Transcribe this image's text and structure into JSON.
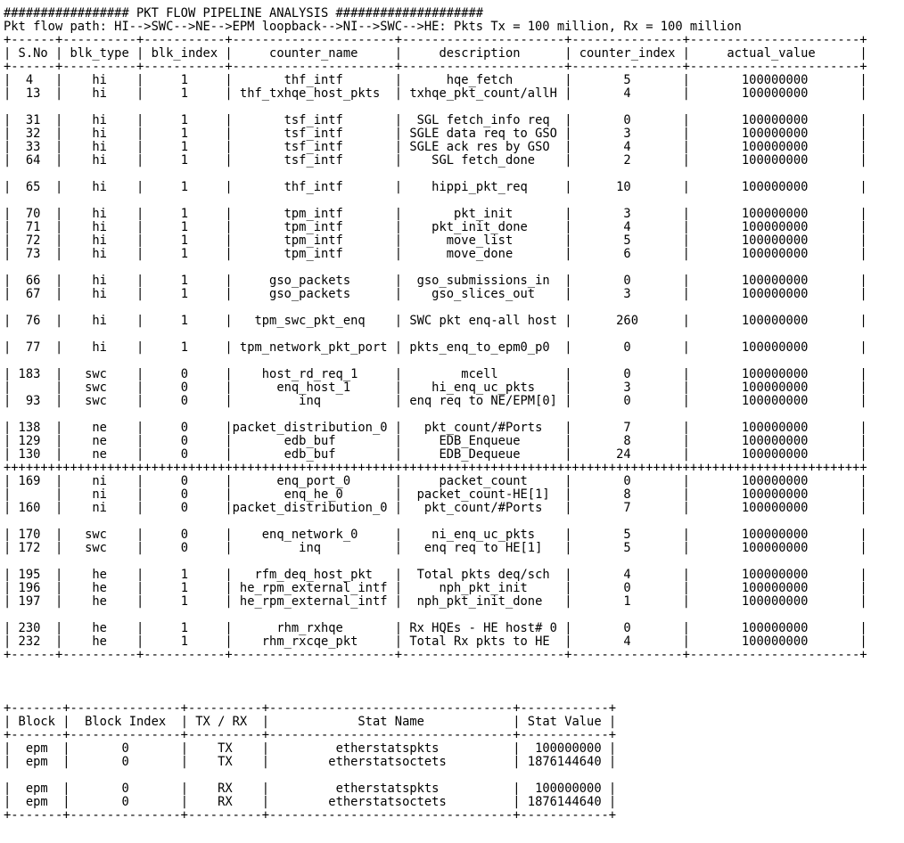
{
  "banner": "################# PKT FLOW PIPELINE ANALYSIS ####################",
  "flow_path": "Pkt flow path: HI-->SWC-->NE-->EPM loopback-->NI-->SWC-->HE: Pkts Tx = 100 million, Rx = 100 million",
  "table1": {
    "headers": [
      "S.No",
      "blk_type",
      "blk_index",
      "counter_name",
      "description",
      "counter_index",
      "actual_value"
    ],
    "groups": [
      [
        [
          "4",
          "hi",
          "1",
          "thf_intf",
          "hqe_fetch",
          "5",
          "100000000"
        ],
        [
          "13",
          "hi",
          "1",
          "thf_txhqe_host_pkts",
          "txhqe_pkt_count/allH",
          "4",
          "100000000"
        ]
      ],
      [
        [
          "31",
          "hi",
          "1",
          "tsf_intf",
          "SGL fetch_info req",
          "0",
          "100000000"
        ],
        [
          "32",
          "hi",
          "1",
          "tsf_intf",
          "SGLE data req to GSO",
          "3",
          "100000000"
        ],
        [
          "33",
          "hi",
          "1",
          "tsf_intf",
          "SGLE ack res by GSO",
          "4",
          "100000000"
        ],
        [
          "64",
          "hi",
          "1",
          "tsf_intf",
          "SGL fetch_done",
          "2",
          "100000000"
        ]
      ],
      [
        [
          "65",
          "hi",
          "1",
          "thf_intf",
          "hippi_pkt_req",
          "10",
          "100000000"
        ]
      ],
      [
        [
          "70",
          "hi",
          "1",
          "tpm_intf",
          "pkt_init",
          "3",
          "100000000"
        ],
        [
          "71",
          "hi",
          "1",
          "tpm_intf",
          "pkt_init_done",
          "4",
          "100000000"
        ],
        [
          "72",
          "hi",
          "1",
          "tpm_intf",
          "move_list",
          "5",
          "100000000"
        ],
        [
          "73",
          "hi",
          "1",
          "tpm_intf",
          "move_done",
          "6",
          "100000000"
        ]
      ],
      [
        [
          "66",
          "hi",
          "1",
          "gso_packets",
          "gso_submissions_in",
          "0",
          "100000000"
        ],
        [
          "67",
          "hi",
          "1",
          "gso_packets",
          "gso_slices_out",
          "3",
          "100000000"
        ]
      ],
      [
        [
          "76",
          "hi",
          "1",
          "tpm_swc_pkt_enq",
          "SWC pkt enq-all host",
          "260",
          "100000000"
        ]
      ],
      [
        [
          "77",
          "hi",
          "1",
          "tpm_network_pkt_port",
          "pkts_enq_to_epm0_p0",
          "0",
          "100000000"
        ]
      ],
      [
        [
          "183",
          "swc",
          "0",
          "host_rd_req_1",
          "mcell",
          "0",
          "100000000"
        ],
        [
          "",
          "swc",
          "0",
          "enq_host_1",
          "hi_enq_uc_pkts",
          "3",
          "100000000"
        ],
        [
          "93",
          "swc",
          "0",
          "inq",
          "enq req to NE/EPM[0]",
          "0",
          "100000000"
        ]
      ],
      [
        [
          "138",
          "ne",
          "0",
          "packet_distribution_0",
          "pkt_count/#Ports",
          "7",
          "100000000"
        ],
        [
          "129",
          "ne",
          "0",
          "edb_buf",
          "EDB_Enqueue",
          "8",
          "100000000"
        ],
        [
          "130",
          "ne",
          "0",
          "edb_buf",
          "EDB_Dequeue",
          "24",
          "100000000"
        ]
      ],
      "PLUS_RULE",
      [
        [
          "169",
          "ni",
          "0",
          "enq_port_0",
          "packet_count",
          "0",
          "100000000"
        ],
        [
          "",
          "ni",
          "0",
          "enq_he_0",
          "packet_count-HE[1]",
          "8",
          "100000000"
        ],
        [
          "160",
          "ni",
          "0",
          "packet_distribution_0",
          "pkt_count/#Ports",
          "7",
          "100000000"
        ]
      ],
      [
        [
          "170",
          "swc",
          "0",
          "enq_network_0",
          "ni_enq_uc_pkts",
          "5",
          "100000000"
        ],
        [
          "172",
          "swc",
          "0",
          "inq",
          "enq req to HE[1]",
          "5",
          "100000000"
        ]
      ],
      [
        [
          "195",
          "he",
          "1",
          "rfm_deq_host_pkt",
          "Total pkts deq/sch",
          "4",
          "100000000"
        ],
        [
          "196",
          "he",
          "1",
          "he_rpm_external_intf",
          "nph_pkt_init",
          "0",
          "100000000"
        ],
        [
          "197",
          "he",
          "1",
          "he_rpm_external_intf",
          "nph_pkt_init_done",
          "1",
          "100000000"
        ]
      ],
      [
        [
          "230",
          "he",
          "1",
          "rhm_rxhqe",
          "Rx HQEs - HE host# 0",
          "0",
          "100000000"
        ],
        [
          "232",
          "he",
          "1",
          "rhm_rxcqe_pkt",
          "Total Rx pkts to HE",
          "4",
          "100000000"
        ]
      ]
    ]
  },
  "table2": {
    "headers": [
      "Block",
      "Block Index",
      "TX / RX",
      "Stat Name",
      "Stat Value"
    ],
    "groups": [
      [
        [
          "epm",
          "0",
          "TX",
          "etherstatspkts",
          "100000000"
        ],
        [
          "epm",
          "0",
          "TX",
          "etherstatsoctets",
          "1876144640"
        ]
      ],
      [
        [
          "epm",
          "0",
          "RX",
          "etherstatspkts",
          "100000000"
        ],
        [
          "epm",
          "0",
          "RX",
          "etherstatsoctets",
          "1876144640"
        ]
      ]
    ]
  }
}
